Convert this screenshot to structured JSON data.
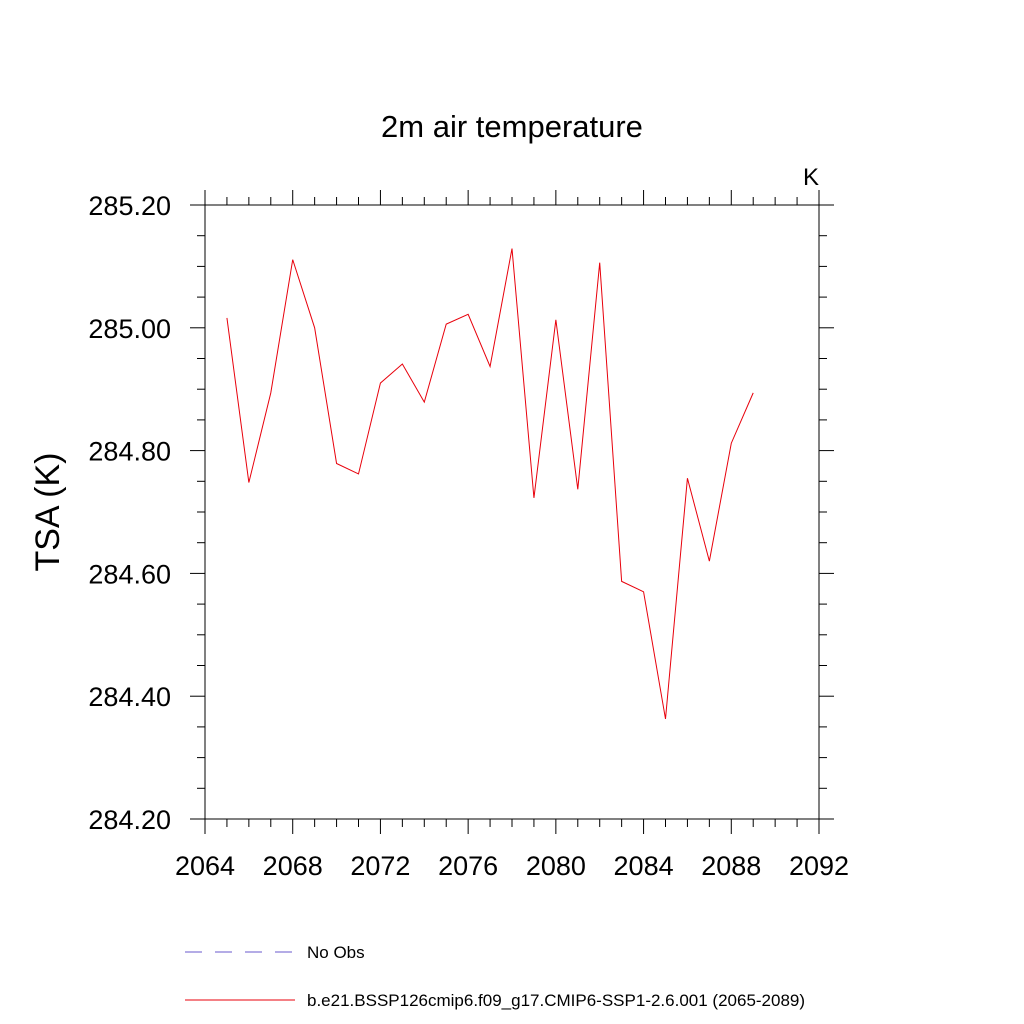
{
  "chart_data": {
    "type": "line",
    "title": "2m air temperature",
    "units_label": "K",
    "xlabel": "",
    "ylabel": "TSA  (K)",
    "xlim": [
      2064,
      2092
    ],
    "ylim": [
      284.2,
      285.2
    ],
    "x_ticks": [
      2064,
      2068,
      2072,
      2076,
      2080,
      2084,
      2088,
      2092
    ],
    "y_ticks": [
      284.2,
      284.4,
      284.6,
      284.8,
      285.0,
      285.2
    ],
    "x_tick_labels": [
      "2064",
      "2068",
      "2072",
      "2076",
      "2080",
      "2084",
      "2088",
      "2092"
    ],
    "y_tick_labels": [
      "284.20",
      "284.40",
      "284.60",
      "284.80",
      "285.00",
      "285.20"
    ],
    "x_minor_step": 1,
    "y_minor_step": 0.05,
    "grid": false,
    "series": [
      {
        "name": "b.e21.BSSP126cmip6.f09_g17.CMIP6-SSP1-2.6.001 (2065-2089)",
        "color": "#e8000b",
        "style": "solid",
        "x": [
          2065,
          2066,
          2067,
          2068,
          2069,
          2070,
          2071,
          2072,
          2073,
          2074,
          2075,
          2076,
          2077,
          2078,
          2079,
          2080,
          2081,
          2082,
          2083,
          2084,
          2085,
          2086,
          2087,
          2088,
          2089
        ],
        "y": [
          285.016,
          284.748,
          284.894,
          285.111,
          285.0,
          284.779,
          284.762,
          284.91,
          284.941,
          284.879,
          285.006,
          285.022,
          284.937,
          285.129,
          284.723,
          285.013,
          284.737,
          285.106,
          284.587,
          284.57,
          284.363,
          284.755,
          284.62,
          284.812,
          284.894
        ]
      }
    ],
    "legend": {
      "placement": "bottom",
      "entries": [
        {
          "label": "No Obs",
          "color": "#6a5acd",
          "style": "dashed"
        },
        {
          "label": "b.e21.BSSP126cmip6.f09_g17.CMIP6-SSP1-2.6.001 (2065-2089)",
          "color": "#e8000b",
          "style": "solid"
        }
      ]
    }
  }
}
